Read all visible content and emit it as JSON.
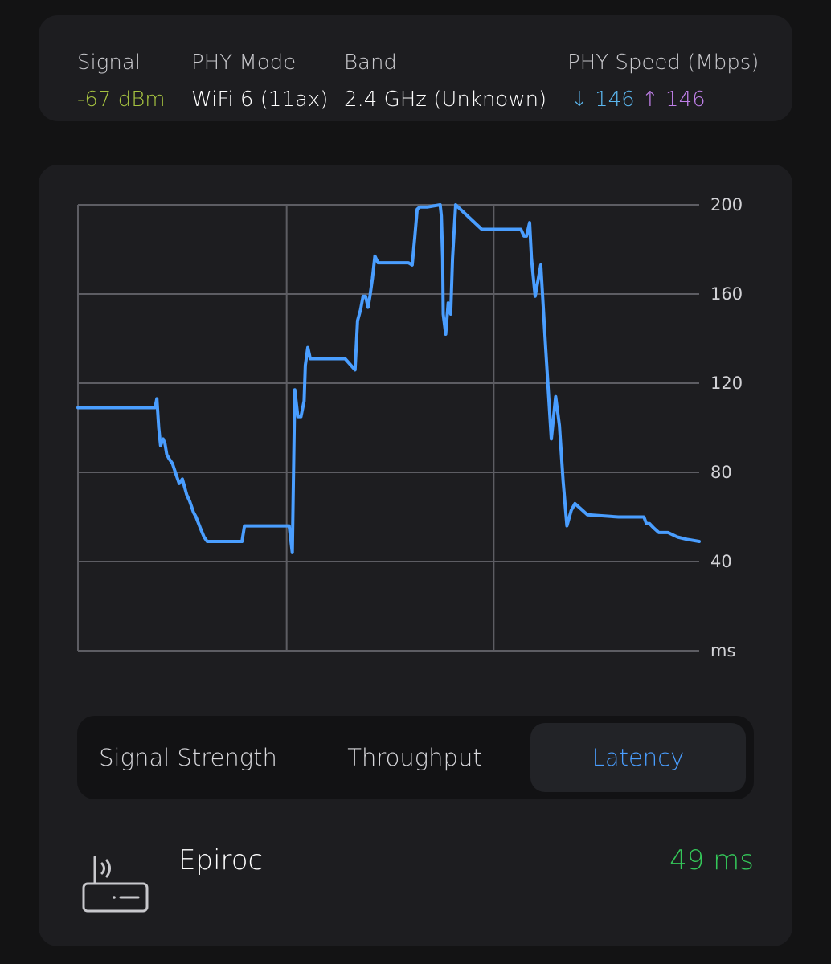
{
  "info": {
    "signal": {
      "label": "Signal",
      "value": "-67 dBm",
      "color": "#a6c340"
    },
    "phy_mode": {
      "label": "PHY Mode",
      "value": "WiFi 6 (11ax)"
    },
    "band": {
      "label": "Band",
      "value": "2.4 GHz (Unknown)"
    },
    "phy_speed": {
      "label": "PHY Speed (Mbps)",
      "down_arrow": "↓",
      "down_value": "146",
      "down_color": "#5bb6ee",
      "up_arrow": "↑",
      "up_value": "146",
      "up_color": "#bf7fe8"
    }
  },
  "chart_data": {
    "type": "line",
    "ylabel": "ms",
    "y_ticks": [
      200,
      160,
      120,
      80,
      40
    ],
    "ylim": [
      0,
      200
    ],
    "xlim": [
      0,
      1
    ],
    "grid": true,
    "line_color": "#4a9eff",
    "x": [
      0,
      0.124,
      0.127,
      0.13,
      0.133,
      0.137,
      0.14,
      0.143,
      0.147,
      0.152,
      0.158,
      0.163,
      0.168,
      0.175,
      0.18,
      0.186,
      0.19,
      0.197,
      0.203,
      0.208,
      0.213,
      0.218,
      0.25,
      0.264,
      0.268,
      0.272,
      0.318,
      0.34,
      0.345,
      0.349,
      0.354,
      0.359,
      0.364,
      0.366,
      0.37,
      0.374,
      0.376,
      0.378,
      0.38,
      0.4,
      0.43,
      0.446,
      0.45,
      0.455,
      0.459,
      0.463,
      0.467,
      0.47,
      0.474,
      0.478,
      0.483,
      0.49,
      0.505,
      0.52,
      0.532,
      0.538,
      0.542,
      0.546,
      0.55,
      0.562,
      0.583,
      0.585,
      0.587,
      0.588,
      0.592,
      0.596,
      0.599,
      0.6,
      0.603,
      0.608,
      0.65,
      0.683,
      0.708,
      0.713,
      0.718,
      0.722,
      0.727,
      0.73,
      0.736,
      0.745,
      0.753,
      0.762,
      0.769,
      0.775,
      0.781,
      0.787,
      0.794,
      0.8,
      0.82,
      0.87,
      0.905,
      0.908,
      0.911,
      0.915,
      0.92,
      0.927,
      0.935,
      0.95,
      0.965,
      0.98,
      1.0
    ],
    "values": [
      109,
      109,
      113,
      100,
      92,
      95,
      93,
      88,
      86,
      84,
      79,
      75,
      77,
      70,
      67,
      62,
      60,
      55,
      51,
      49,
      49,
      49,
      49,
      49,
      56,
      56,
      56,
      56,
      44,
      117,
      105,
      105,
      112,
      128,
      136,
      131,
      131,
      131,
      131,
      131,
      131,
      126,
      148,
      153,
      159,
      159,
      154,
      159,
      167,
      177,
      174,
      174,
      174,
      174,
      174,
      173,
      185,
      198,
      199,
      199,
      200,
      195,
      176,
      151,
      142,
      156,
      152,
      151,
      176,
      200,
      189,
      189,
      189,
      189,
      186,
      186,
      192,
      176,
      159,
      173,
      135,
      95,
      114,
      101,
      76,
      56,
      63,
      66,
      61,
      60,
      60,
      60,
      60,
      57,
      57,
      55,
      53,
      53,
      51,
      50,
      49
    ]
  },
  "tabs": [
    {
      "label": "Signal Strength",
      "active": false
    },
    {
      "label": "Throughput",
      "active": false
    },
    {
      "label": "Latency",
      "active": true
    }
  ],
  "network": {
    "icon": "router-icon",
    "name": "Epiroc",
    "latency": "49 ms",
    "latency_color": "#34c759"
  }
}
